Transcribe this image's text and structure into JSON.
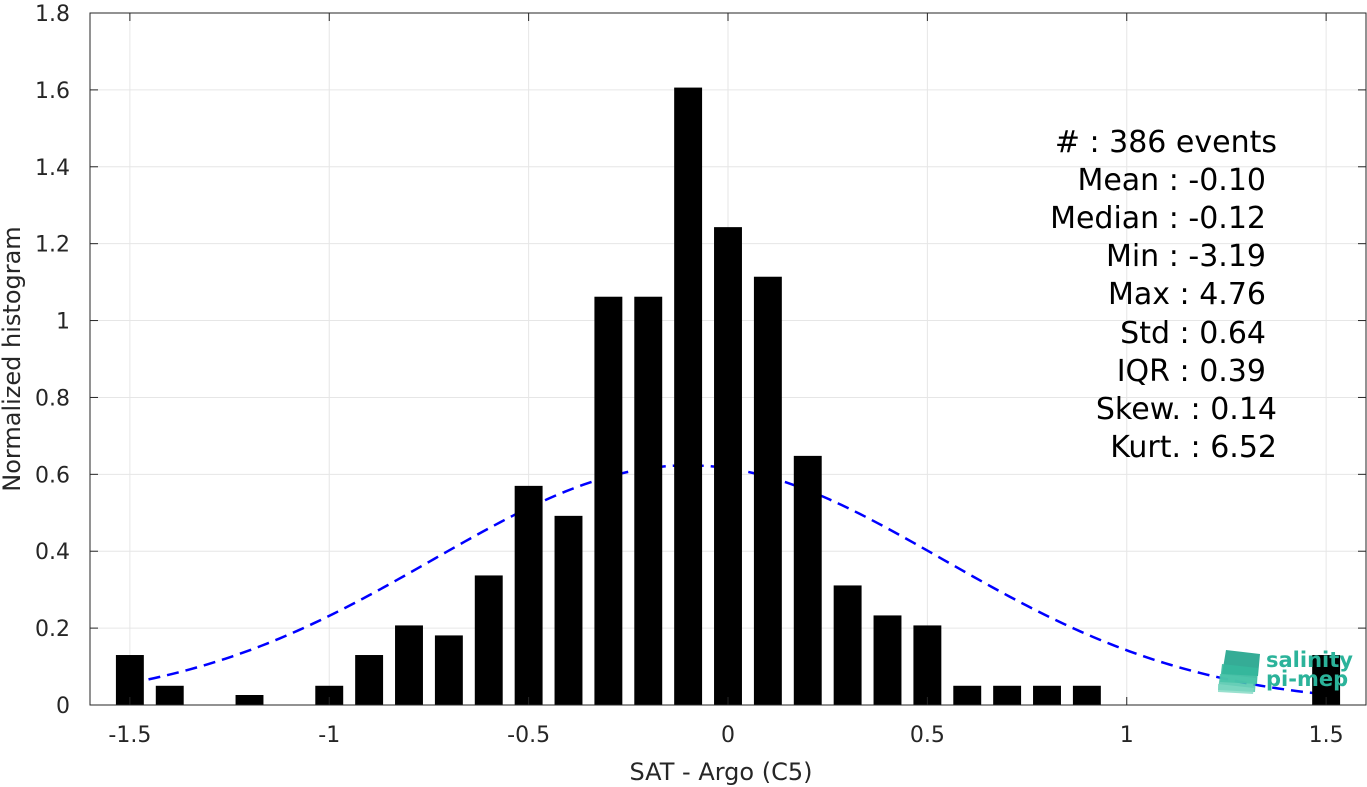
{
  "chart_data": {
    "type": "bar",
    "xlabel": "SAT - Argo (C5)",
    "ylabel": "Normalized histogram",
    "xlim": [
      -1.6,
      1.6
    ],
    "ylim": [
      0,
      1.8
    ],
    "xticks": [
      -1.5,
      -1,
      -0.5,
      0,
      0.5,
      1,
      1.5
    ],
    "xtick_labels": [
      "-1.5",
      "-1",
      "-0.5",
      "0",
      "0.5",
      "1",
      "1.5"
    ],
    "yticks": [
      0,
      0.2,
      0.4,
      0.6,
      0.8,
      1,
      1.2,
      1.4,
      1.6,
      1.8
    ],
    "ytick_labels": [
      "0",
      "0.2",
      "0.4",
      "0.6",
      "0.8",
      "1",
      "1.2",
      "1.4",
      "1.6",
      "1.8"
    ],
    "grid": true,
    "bar_width": 0.07,
    "bars": [
      {
        "x": -1.5,
        "y": 0.13
      },
      {
        "x": -1.4,
        "y": 0.05
      },
      {
        "x": -1.2,
        "y": 0.026
      },
      {
        "x": -1.0,
        "y": 0.05
      },
      {
        "x": -0.9,
        "y": 0.13
      },
      {
        "x": -0.8,
        "y": 0.207
      },
      {
        "x": -0.7,
        "y": 0.181
      },
      {
        "x": -0.6,
        "y": 0.337
      },
      {
        "x": -0.5,
        "y": 0.57
      },
      {
        "x": -0.4,
        "y": 0.492
      },
      {
        "x": -0.3,
        "y": 1.062
      },
      {
        "x": -0.2,
        "y": 1.062
      },
      {
        "x": -0.1,
        "y": 1.606
      },
      {
        "x": 0.0,
        "y": 1.243
      },
      {
        "x": 0.1,
        "y": 1.114
      },
      {
        "x": 0.2,
        "y": 0.648
      },
      {
        "x": 0.3,
        "y": 0.311
      },
      {
        "x": 0.4,
        "y": 0.233
      },
      {
        "x": 0.5,
        "y": 0.207
      },
      {
        "x": 0.6,
        "y": 0.05
      },
      {
        "x": 0.7,
        "y": 0.05
      },
      {
        "x": 0.8,
        "y": 0.05
      },
      {
        "x": 0.9,
        "y": 0.05
      },
      {
        "x": 1.5,
        "y": 0.13
      }
    ],
    "normal_fit": {
      "mean": -0.1,
      "std": 0.64,
      "x_range": [
        -1.5,
        1.5
      ],
      "color": "#0000ff",
      "style": "dashed"
    },
    "bar_color": "#000000"
  },
  "stats": [
    {
      "text": "#  : 386 events"
    },
    {
      "text": "Mean : -0.10"
    },
    {
      "text": "Median : -0.12"
    },
    {
      "text": "Min : -3.19"
    },
    {
      "text": "Max : 4.76"
    },
    {
      "text": "Std : 0.64"
    },
    {
      "text": "IQR : 0.39"
    },
    {
      "text": "Skew. : 0.14"
    },
    {
      "text": "Kurt. : 6.52"
    }
  ],
  "logo": {
    "line1": "salinity",
    "line2": "pi-mep",
    "color": "#2bb39a"
  }
}
